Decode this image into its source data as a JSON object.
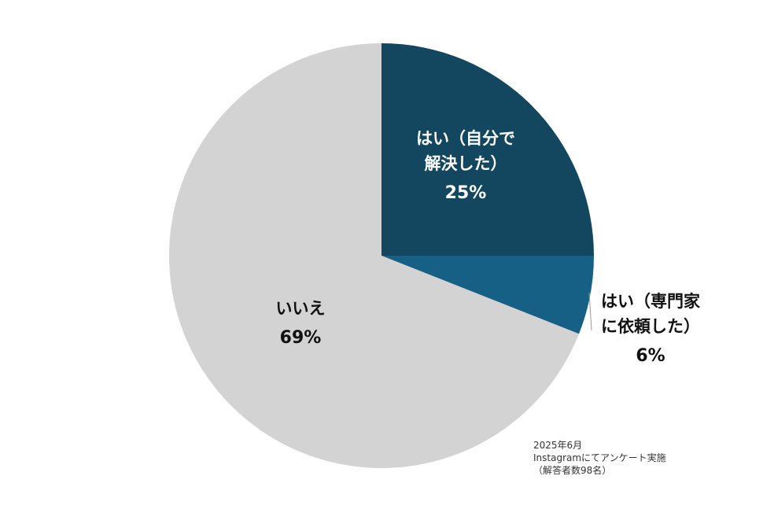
{
  "chart_data": {
    "type": "pie",
    "slices": [
      {
        "label_lines": [
          "はい（自分で",
          "解決した）"
        ],
        "value": 25,
        "value_label": "25%",
        "color": "#12475f"
      },
      {
        "label_lines": [
          "はい（専門家",
          "に依頼した）"
        ],
        "value": 6,
        "value_label": "6%",
        "color": "#165f85"
      },
      {
        "label_lines": [
          "いいえ"
        ],
        "value": 69,
        "value_label": "69%",
        "color": "#d3d3d3"
      }
    ],
    "start": "12 o'clock",
    "direction": "clockwise",
    "legend": "none"
  },
  "note": {
    "lines": [
      "2025年6月",
      "Instagramにてアンケート実施",
      "（解答者数98名）"
    ]
  }
}
